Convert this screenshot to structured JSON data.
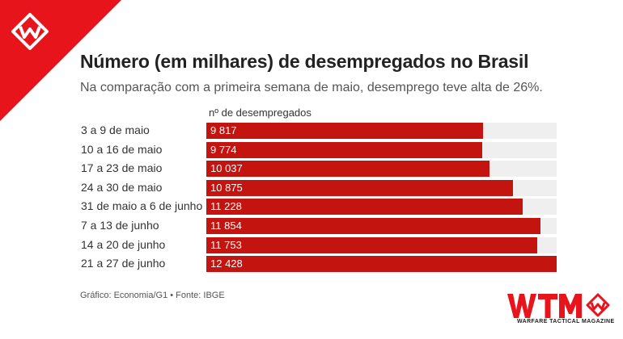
{
  "chart_data": {
    "type": "bar",
    "orientation": "horizontal",
    "title": "Número (em milhares) de desempregados no Brasil",
    "subtitle": "Na comparação com a primeira semana de maio, desemprego teve alta de 26%.",
    "series_label": "nº de desempregados",
    "categories": [
      "3 a 9 de maio",
      "10 a 16 de maio",
      "17 a 23 de maio",
      "24 a 30 de maio",
      "31 de maio a 6 de junho",
      "7 a 13 de junho",
      "14 a 20 de junho",
      "21 a 27 de junho"
    ],
    "values": [
      9817,
      9774,
      10037,
      10875,
      11228,
      11854,
      11753,
      12428
    ],
    "value_labels": [
      "9 817",
      "9 774",
      "10 037",
      "10 875",
      "11 228",
      "11 854",
      "11 753",
      "12 428"
    ],
    "xlim": [
      0,
      12428
    ],
    "bar_color": "#c4140f",
    "track_color": "#efefef"
  },
  "source": "Gráfico: Economia/G1 • Fonte: IBGE",
  "brand": {
    "logo_text": "WTM",
    "tagline": "WARFARE TACTICAL MAGAZINE",
    "color": "#e8141c"
  }
}
